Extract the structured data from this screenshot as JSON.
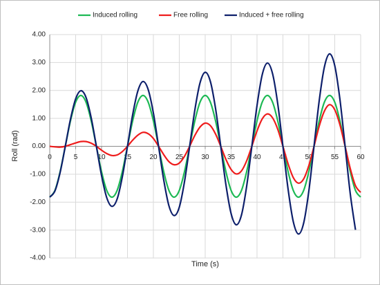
{
  "chart_data": {
    "type": "line",
    "xlabel": "Time (s)",
    "ylabel": "Roll (rad)",
    "x": [
      0,
      1,
      2,
      3,
      4,
      5,
      6,
      7,
      8,
      9,
      10,
      11,
      12,
      13,
      14,
      15,
      16,
      17,
      18,
      19,
      20,
      21,
      22,
      23,
      24,
      25,
      26,
      27,
      28,
      29,
      30,
      31,
      32,
      33,
      34,
      35,
      36,
      37,
      38,
      39,
      40,
      41,
      42,
      43,
      44,
      45,
      46,
      47,
      48,
      49,
      50,
      51,
      52,
      53,
      54,
      55,
      56,
      57,
      58,
      59,
      60
    ],
    "series": [
      {
        "name": "Induced rolling",
        "color": "#1db954",
        "values": [
          -1.82,
          -1.58,
          -0.91,
          0,
          0.91,
          1.58,
          1.82,
          1.58,
          0.91,
          0,
          -0.91,
          -1.58,
          -1.82,
          -1.58,
          -0.91,
          0,
          0.91,
          1.58,
          1.82,
          1.58,
          0.91,
          0,
          -0.91,
          -1.58,
          -1.82,
          -1.58,
          -0.91,
          0,
          0.91,
          1.58,
          1.82,
          1.58,
          0.91,
          0,
          -0.91,
          -1.58,
          -1.82,
          -1.58,
          -0.91,
          0,
          0.91,
          1.58,
          1.82,
          1.58,
          0.91,
          0,
          -0.91,
          -1.58,
          -1.82,
          -1.58,
          -0.91,
          0,
          0.91,
          1.58,
          1.82,
          1.58,
          0.91,
          0,
          -0.91,
          -1.58,
          -1.82
        ]
      },
      {
        "name": "Free rolling",
        "color": "#ee1c1c",
        "values": [
          0,
          -0.02,
          -0.03,
          0,
          0.06,
          0.12,
          0.17,
          0.17,
          0.11,
          0,
          -0.14,
          -0.26,
          -0.33,
          -0.31,
          -0.19,
          0,
          0.22,
          0.4,
          0.5,
          0.45,
          0.28,
          0,
          -0.3,
          -0.55,
          -0.66,
          -0.6,
          -0.36,
          0,
          0.39,
          0.69,
          0.83,
          0.74,
          0.44,
          0,
          -0.47,
          -0.83,
          -0.99,
          -0.88,
          -0.52,
          0,
          0.55,
          0.98,
          1.16,
          1.02,
          0.61,
          0,
          -0.63,
          -1.12,
          -1.32,
          -1.17,
          -0.69,
          0,
          0.72,
          1.26,
          1.49,
          1.31,
          0.77,
          0,
          -0.8,
          -1.41,
          -1.65
        ]
      },
      {
        "name": "Induced + free rolling",
        "color": "#0d1f6b",
        "values": [
          -1.82,
          -1.6,
          -0.94,
          0,
          0.97,
          1.7,
          1.99,
          1.75,
          1.02,
          0,
          -1.05,
          -1.84,
          -2.15,
          -1.89,
          -1.1,
          0,
          1.13,
          1.98,
          2.32,
          2.03,
          1.19,
          0,
          -1.21,
          -2.13,
          -2.48,
          -2.18,
          -1.27,
          0,
          1.3,
          2.27,
          2.65,
          2.32,
          1.35,
          0,
          -1.38,
          -2.41,
          -2.81,
          -2.46,
          -1.43,
          0,
          1.46,
          2.56,
          2.98,
          2.6,
          1.52,
          0,
          -1.54,
          -2.7,
          -3.14,
          -2.75,
          -1.6,
          0,
          1.63,
          2.84,
          3.31,
          2.89,
          1.68,
          0,
          -1.71,
          -2.99,
          null
        ]
      }
    ],
    "xlim": [
      0,
      60
    ],
    "xticks": [
      0,
      5,
      10,
      15,
      20,
      25,
      30,
      35,
      40,
      45,
      50,
      55,
      60
    ],
    "ylim": [
      -4,
      4
    ],
    "yticks": [
      {
        "value": -4,
        "label": "-4.00"
      },
      {
        "value": -3,
        "label": "-3.00"
      },
      {
        "value": -2,
        "label": "-2.00"
      },
      {
        "value": -1,
        "label": "-1.00"
      },
      {
        "value": 0,
        "label": "0.00"
      },
      {
        "value": 1,
        "label": "1.00"
      },
      {
        "value": 2,
        "label": "2.00"
      },
      {
        "value": 3,
        "label": "3.00"
      },
      {
        "value": 4,
        "label": "4.00"
      }
    ],
    "grid": true,
    "legend": "top"
  }
}
